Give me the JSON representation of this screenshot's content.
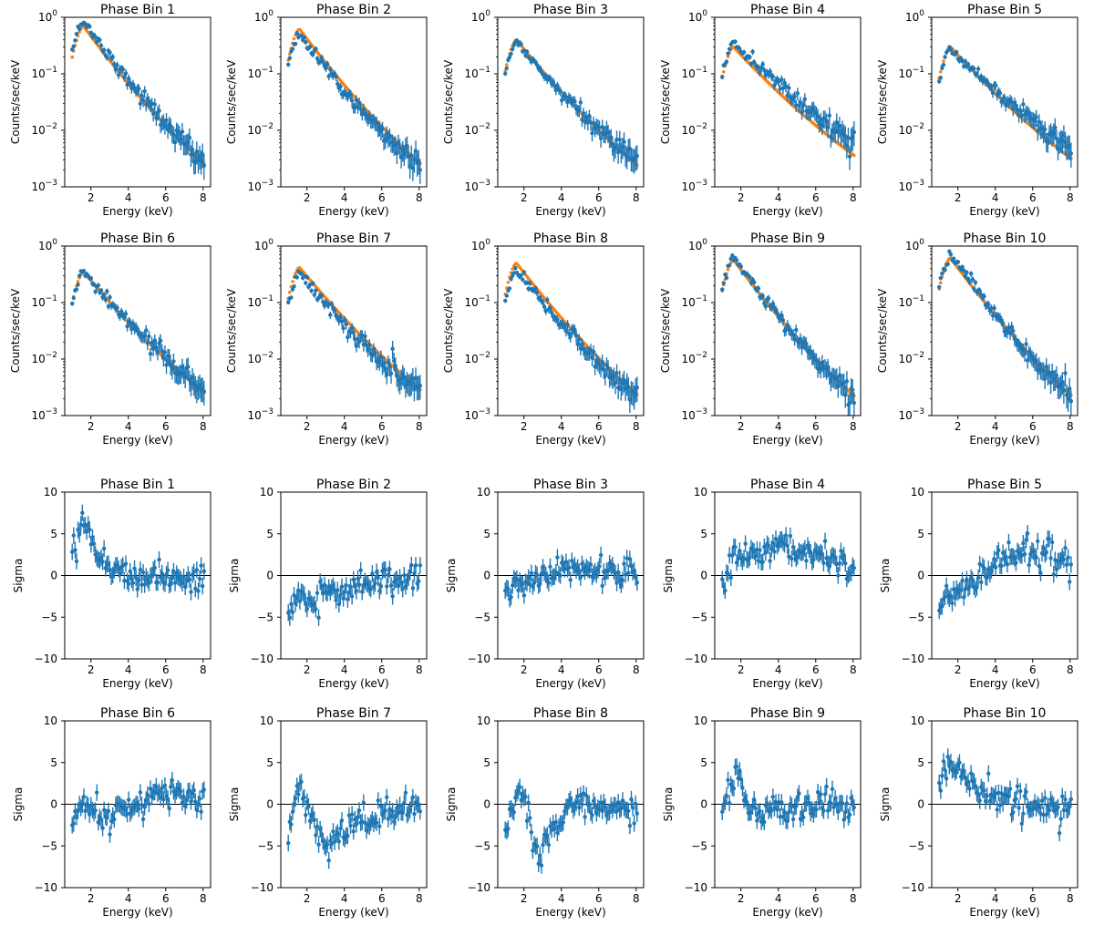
{
  "colors": {
    "data": "#1f77b4",
    "model": "#ff7f0e",
    "axis": "#000000",
    "zero_line": "#000000"
  },
  "chart_data": {
    "type": "scatter",
    "xlabel": "Energy (keV)",
    "xlim": [
      0.6,
      8.4
    ],
    "x_ticks": [
      2,
      4,
      6,
      8
    ],
    "x_tick_labels": [
      "2",
      "4",
      "6",
      "8"
    ],
    "spectra": {
      "ylabel": "Counts/sec/keV",
      "yscale": "log",
      "ylim": [
        0.001,
        1
      ],
      "y_tick_labels": [
        "10^-3",
        "10^-2",
        "10^-1",
        "10^0"
      ],
      "panels": [
        {
          "title": "Phase Bin 1",
          "peak": 0.7,
          "slope": 0.9,
          "offset": [
            0.1,
            0.02
          ],
          "scatter": 0.06
        },
        {
          "title": "Phase Bin 2",
          "peak": 0.62,
          "slope": 0.88,
          "offset": [
            -0.1,
            -0.08
          ],
          "scatter": 0.07
        },
        {
          "title": "Phase Bin 3",
          "peak": 0.4,
          "slope": 0.82,
          "offset": [
            -0.03,
            0.06
          ],
          "scatter": 0.06
        },
        {
          "title": "Phase Bin 4",
          "peak": 0.3,
          "slope": 0.71,
          "offset": [
            0.06,
            0.26
          ],
          "scatter": 0.07
        },
        {
          "title": "Phase Bin 5",
          "peak": 0.3,
          "slope": 0.73,
          "offset": [
            -0.05,
            0.18
          ],
          "scatter": 0.06
        },
        {
          "title": "Phase Bin 6",
          "peak": 0.35,
          "slope": 0.79,
          "offset": [
            -0.02,
            0.05
          ],
          "scatter": 0.07
        },
        {
          "title": "Phase Bin 7",
          "peak": 0.42,
          "slope": 0.8,
          "offset": [
            -0.11,
            -0.07
          ],
          "scatter": 0.08
        },
        {
          "title": "Phase Bin 8",
          "peak": 0.5,
          "slope": 0.86,
          "offset": [
            -0.14,
            -0.03
          ],
          "scatter": 0.07
        },
        {
          "title": "Phase Bin 9",
          "peak": 0.57,
          "slope": 0.89,
          "offset": [
            0.04,
            -0.02
          ],
          "scatter": 0.06
        },
        {
          "title": "Phase Bin 10",
          "peak": 0.62,
          "slope": 0.9,
          "offset": [
            0.07,
            -0.03
          ],
          "scatter": 0.07
        }
      ]
    },
    "residuals": {
      "ylabel": "Sigma",
      "yscale": "linear",
      "ylim": [
        -10,
        10
      ],
      "y_ticks": [
        -10,
        -5,
        0,
        5,
        10
      ],
      "y_tick_labels": [
        "−10",
        "−5",
        "0",
        "5",
        "10"
      ],
      "panels": [
        {
          "title": "Phase Bin 1",
          "trend": [
            [
              1.0,
              3.5
            ],
            [
              1.6,
              7.0
            ],
            [
              2.3,
              3.0
            ],
            [
              3.2,
              0.5
            ],
            [
              5.0,
              0.0
            ],
            [
              8.0,
              -0.5
            ]
          ]
        },
        {
          "title": "Phase Bin 2",
          "trend": [
            [
              1.0,
              -4.5
            ],
            [
              1.5,
              -2.5
            ],
            [
              2.5,
              -3.0
            ],
            [
              3.5,
              -2.0
            ],
            [
              5.0,
              -1.0
            ],
            [
              8.0,
              0.0
            ]
          ]
        },
        {
          "title": "Phase Bin 3",
          "trend": [
            [
              1.0,
              -2.5
            ],
            [
              1.6,
              -1.0
            ],
            [
              2.5,
              -0.5
            ],
            [
              4.5,
              1.0
            ],
            [
              6.0,
              0.5
            ],
            [
              8.0,
              0.3
            ]
          ]
        },
        {
          "title": "Phase Bin 4",
          "trend": [
            [
              1.0,
              -1.0
            ],
            [
              1.6,
              2.5
            ],
            [
              2.5,
              2.0
            ],
            [
              4.0,
              3.5
            ],
            [
              6.0,
              2.5
            ],
            [
              8.0,
              1.5
            ]
          ]
        },
        {
          "title": "Phase Bin 5",
          "trend": [
            [
              1.0,
              -4.0
            ],
            [
              2.0,
              -1.5
            ],
            [
              3.0,
              -1.0
            ],
            [
              4.0,
              1.5
            ],
            [
              5.5,
              3.0
            ],
            [
              8.0,
              1.5
            ]
          ]
        },
        {
          "title": "Phase Bin 6",
          "trend": [
            [
              1.0,
              -2.0
            ],
            [
              1.5,
              0.0
            ],
            [
              2.5,
              -1.5
            ],
            [
              4.0,
              -0.5
            ],
            [
              6.0,
              1.5
            ],
            [
              8.0,
              0.5
            ]
          ]
        },
        {
          "title": "Phase Bin 7",
          "trend": [
            [
              1.0,
              -4.0
            ],
            [
              1.3,
              0.5
            ],
            [
              1.7,
              2.0
            ],
            [
              2.2,
              -2.0
            ],
            [
              3.0,
              -5.0
            ],
            [
              4.0,
              -3.0
            ],
            [
              6.0,
              -1.0
            ],
            [
              8.0,
              -0.8
            ]
          ]
        },
        {
          "title": "Phase Bin 8",
          "trend": [
            [
              1.0,
              -3.0
            ],
            [
              1.7,
              2.5
            ],
            [
              2.3,
              -2.5
            ],
            [
              2.8,
              -7.0
            ],
            [
              3.5,
              -3.0
            ],
            [
              4.5,
              0.0
            ],
            [
              6.0,
              -0.5
            ],
            [
              8.0,
              -0.5
            ]
          ]
        },
        {
          "title": "Phase Bin 9",
          "trend": [
            [
              1.0,
              -1.5
            ],
            [
              1.5,
              2.5
            ],
            [
              1.8,
              4.0
            ],
            [
              2.3,
              -0.5
            ],
            [
              3.0,
              -1.0
            ],
            [
              5.0,
              0.0
            ],
            [
              8.0,
              -0.2
            ]
          ]
        },
        {
          "title": "Phase Bin 10",
          "trend": [
            [
              1.0,
              2.0
            ],
            [
              1.5,
              5.5
            ],
            [
              2.0,
              4.5
            ],
            [
              3.0,
              1.0
            ],
            [
              5.0,
              0.0
            ],
            [
              8.0,
              -0.5
            ]
          ]
        }
      ]
    }
  }
}
